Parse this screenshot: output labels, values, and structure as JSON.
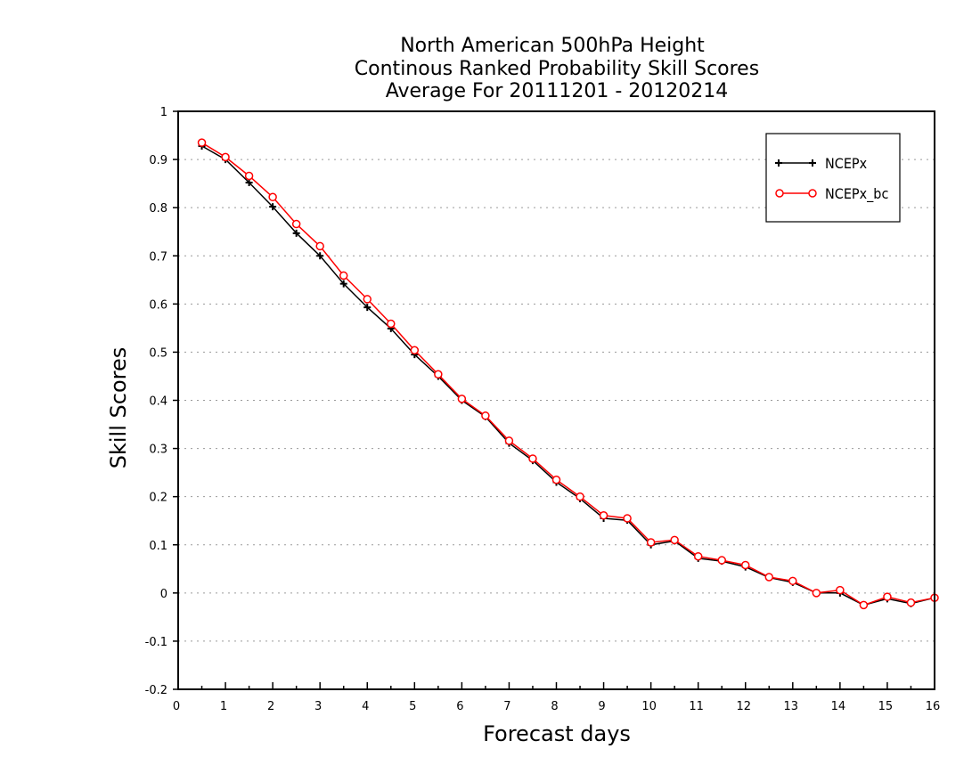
{
  "chart_data": {
    "type": "line",
    "title_lines": [
      "North American 500hPa Height",
      "Continous Ranked Probability Skill Scores",
      "Average For 20111201 - 20120214"
    ],
    "xlabel": "Forecast days",
    "ylabel": "Skill Scores",
    "xlim": [
      0,
      16
    ],
    "ylim": [
      -0.2,
      1
    ],
    "x_ticks": [
      0,
      1,
      2,
      3,
      4,
      5,
      6,
      7,
      8,
      9,
      10,
      11,
      12,
      13,
      14,
      15,
      16
    ],
    "y_ticks": [
      -0.2,
      -0.1,
      0,
      0.1,
      0.2,
      0.3,
      0.4,
      0.5,
      0.6,
      0.7,
      0.8,
      0.9,
      1
    ],
    "y_tick_labels": [
      "-0.2",
      "-0.1",
      "0",
      "0.1",
      "0.2",
      "0.3",
      "0.4",
      "0.5",
      "0.6",
      "0.7",
      "0.8",
      "0.9",
      "1"
    ],
    "grid": "horizontal dotted",
    "legend_position": "top-right",
    "x": [
      0.5,
      1,
      1.5,
      2,
      2.5,
      3,
      3.5,
      4,
      4.5,
      5,
      5.5,
      6,
      6.5,
      7,
      7.5,
      8,
      8.5,
      9,
      9.5,
      10,
      10.5,
      11,
      11.5,
      12,
      12.5,
      13,
      13.5,
      14,
      14.5,
      15,
      15.5,
      16
    ],
    "series": [
      {
        "name": "NCEPx",
        "color": "#000000",
        "marker": "plus",
        "values": [
          0.928,
          0.9,
          0.852,
          0.802,
          0.747,
          0.7,
          0.642,
          0.593,
          0.549,
          0.495,
          0.45,
          0.4,
          0.366,
          0.311,
          0.275,
          0.23,
          0.196,
          0.155,
          0.151,
          0.1,
          0.108,
          0.072,
          0.066,
          0.054,
          0.032,
          0.022,
          0.0,
          0.0,
          -0.025,
          -0.012,
          -0.022,
          -0.01
        ]
      },
      {
        "name": "NCEPx_bc",
        "color": "#ff0000",
        "marker": "circle",
        "values": [
          0.935,
          0.905,
          0.866,
          0.822,
          0.766,
          0.72,
          0.659,
          0.61,
          0.559,
          0.504,
          0.454,
          0.403,
          0.368,
          0.316,
          0.279,
          0.235,
          0.2,
          0.161,
          0.155,
          0.105,
          0.11,
          0.076,
          0.068,
          0.058,
          0.033,
          0.025,
          0.0,
          0.006,
          -0.025,
          -0.008,
          -0.02,
          -0.01
        ]
      }
    ]
  }
}
